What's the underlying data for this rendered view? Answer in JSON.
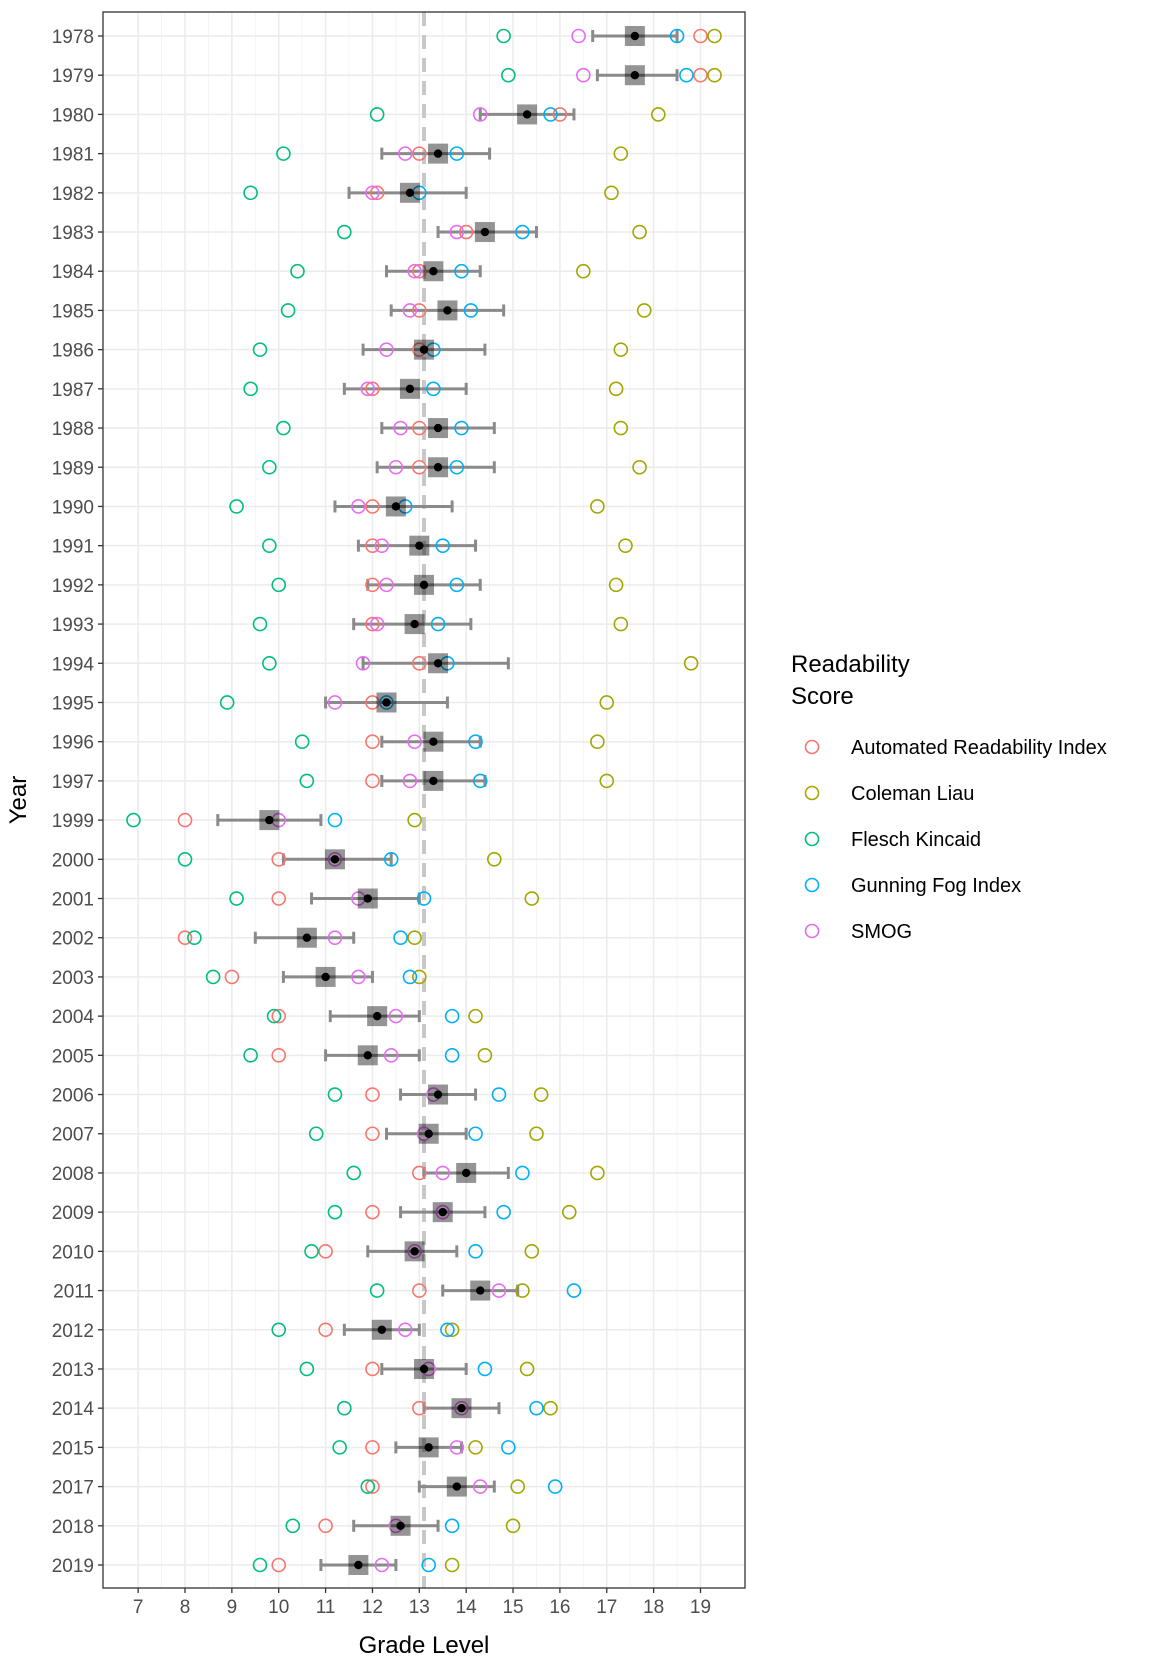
{
  "chart_data": {
    "type": "scatter",
    "title": "",
    "xlabel": "Grade Level",
    "ylabel": "Year",
    "xlim": [
      6.25,
      19.95
    ],
    "x_ticks": [
      7,
      8,
      9,
      10,
      11,
      12,
      13,
      14,
      15,
      16,
      17,
      18,
      19
    ],
    "x_tick_labels": [
      "7",
      "8",
      "9",
      "10",
      "11",
      "12",
      "13",
      "14",
      "15",
      "16",
      "17",
      "18",
      "19"
    ],
    "grid": true,
    "reference_line": 13.1,
    "legend": {
      "title_lines": [
        "Readability",
        "Score"
      ],
      "placement": "right"
    },
    "categories": [
      "1978",
      "1979",
      "1980",
      "1981",
      "1982",
      "1983",
      "1984",
      "1985",
      "1986",
      "1987",
      "1988",
      "1989",
      "1990",
      "1991",
      "1992",
      "1993",
      "1994",
      "1995",
      "1996",
      "1997",
      "1999",
      "2000",
      "2001",
      "2002",
      "2003",
      "2004",
      "2005",
      "2006",
      "2007",
      "2008",
      "2009",
      "2010",
      "2011",
      "2012",
      "2013",
      "2014",
      "2015",
      "2017",
      "2018",
      "2019"
    ],
    "series": [
      {
        "name": "Automated Readability Index",
        "color": "#F8766D",
        "values": [
          19.0,
          19.0,
          16.0,
          13.0,
          12.1,
          14.0,
          13.0,
          13.0,
          13.0,
          12.0,
          13.0,
          13.0,
          12.0,
          12.0,
          12.0,
          12.0,
          13.0,
          12.0,
          12.0,
          12.0,
          8.0,
          10.0,
          10.0,
          8.0,
          9.0,
          10.0,
          10.0,
          12.0,
          12.0,
          13.0,
          12.0,
          11.0,
          13.0,
          11.0,
          12.0,
          13.0,
          12.0,
          12.0,
          11.0,
          10.0
        ]
      },
      {
        "name": "Coleman Liau",
        "color": "#A3A500",
        "values": [
          19.3,
          19.3,
          18.1,
          17.3,
          17.1,
          17.7,
          16.5,
          17.8,
          17.3,
          17.2,
          17.3,
          17.7,
          16.8,
          17.4,
          17.2,
          17.3,
          18.8,
          17.0,
          16.8,
          17.0,
          12.9,
          14.6,
          15.4,
          12.9,
          13.0,
          14.2,
          14.4,
          15.6,
          15.5,
          16.8,
          16.2,
          15.4,
          15.2,
          13.7,
          15.3,
          15.8,
          14.2,
          15.1,
          15.0,
          13.7
        ]
      },
      {
        "name": "Flesch Kincaid",
        "color": "#00BF7D",
        "values": [
          14.8,
          14.9,
          12.1,
          10.1,
          9.4,
          11.4,
          10.4,
          10.2,
          9.6,
          9.4,
          10.1,
          9.8,
          9.1,
          9.8,
          10.0,
          9.6,
          9.8,
          8.9,
          10.5,
          10.6,
          6.9,
          8.0,
          9.1,
          8.2,
          8.6,
          9.9,
          9.4,
          11.2,
          10.8,
          11.6,
          11.2,
          10.7,
          12.1,
          10.0,
          10.6,
          11.4,
          11.3,
          11.9,
          10.3,
          9.6
        ]
      },
      {
        "name": "Gunning Fog Index",
        "color": "#00B0F6",
        "values": [
          18.5,
          18.7,
          15.8,
          13.8,
          13.0,
          15.2,
          13.9,
          14.1,
          13.3,
          13.3,
          13.9,
          13.8,
          12.7,
          13.5,
          13.8,
          13.4,
          13.6,
          12.3,
          14.2,
          14.3,
          11.2,
          12.4,
          13.1,
          12.6,
          12.8,
          13.7,
          13.7,
          14.7,
          14.2,
          15.2,
          14.8,
          14.2,
          16.3,
          13.6,
          14.4,
          15.5,
          14.9,
          15.9,
          13.7,
          13.2
        ]
      },
      {
        "name": "SMOG",
        "color": "#E76BF3",
        "values": [
          16.4,
          16.5,
          14.3,
          12.7,
          12.0,
          13.8,
          12.9,
          12.8,
          12.3,
          11.9,
          12.6,
          12.5,
          11.7,
          12.2,
          12.3,
          12.1,
          11.8,
          11.2,
          12.9,
          12.8,
          10.0,
          11.2,
          11.7,
          11.2,
          11.7,
          12.5,
          12.4,
          13.3,
          13.1,
          13.5,
          13.5,
          12.9,
          14.7,
          12.7,
          13.2,
          13.9,
          13.8,
          14.3,
          12.5,
          12.2
        ]
      }
    ],
    "mean": [
      17.6,
      17.6,
      15.3,
      13.4,
      12.8,
      14.4,
      13.3,
      13.6,
      13.1,
      12.8,
      13.4,
      13.4,
      12.5,
      13.0,
      13.1,
      12.9,
      13.4,
      12.3,
      13.3,
      13.3,
      9.8,
      11.2,
      11.9,
      10.6,
      11.0,
      12.1,
      11.9,
      13.4,
      13.2,
      14.0,
      13.5,
      12.9,
      14.3,
      12.2,
      13.1,
      13.9,
      13.2,
      13.8,
      12.6,
      11.7
    ],
    "error_low": [
      16.7,
      16.8,
      14.3,
      12.2,
      11.5,
      13.4,
      12.3,
      12.4,
      11.8,
      11.4,
      12.2,
      12.1,
      11.2,
      11.7,
      11.9,
      11.6,
      11.8,
      11.0,
      12.2,
      12.2,
      8.7,
      10.1,
      10.7,
      9.5,
      10.1,
      11.1,
      11.0,
      12.6,
      12.3,
      13.1,
      12.6,
      11.9,
      13.5,
      11.4,
      12.2,
      13.1,
      12.5,
      13.0,
      11.6,
      10.9
    ],
    "error_high": [
      18.5,
      18.5,
      16.3,
      14.5,
      14.0,
      15.5,
      14.3,
      14.8,
      14.4,
      14.0,
      14.6,
      14.6,
      13.7,
      14.2,
      14.3,
      14.1,
      14.9,
      13.6,
      14.3,
      14.4,
      10.9,
      12.4,
      13.0,
      11.6,
      12.0,
      13.0,
      13.0,
      14.2,
      14.0,
      14.9,
      14.4,
      13.8,
      15.1,
      13.0,
      14.0,
      14.7,
      13.9,
      14.6,
      13.4,
      12.5
    ]
  }
}
